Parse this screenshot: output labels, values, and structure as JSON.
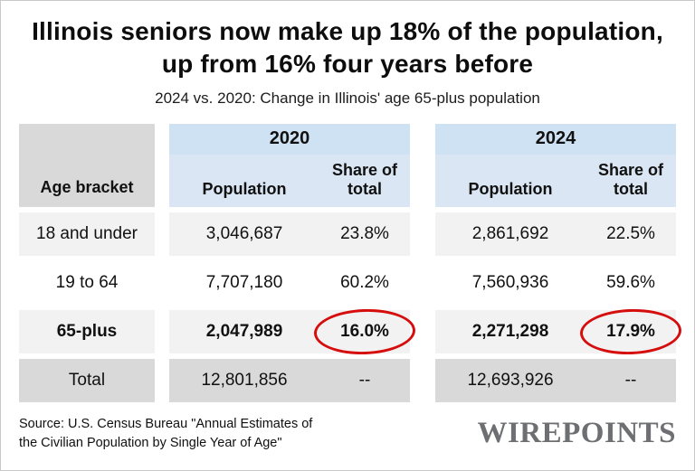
{
  "header": {
    "title": "Illinois seniors now make up 18% of the population, up from 16% four years before",
    "subtitle": "2024 vs. 2020: Change in Illinois' age 65-plus population"
  },
  "table": {
    "age_bracket_header": "Age bracket",
    "groups": [
      {
        "year": "2020",
        "population_label": "Population",
        "share_label": "Share of total"
      },
      {
        "year": "2024",
        "population_label": "Population",
        "share_label": "Share of total"
      }
    ],
    "rows": [
      {
        "label": "18 and under",
        "pop_2020": "3,046,687",
        "share_2020": "23.8%",
        "pop_2024": "2,861,692",
        "share_2024": "22.5%"
      },
      {
        "label": "19 to 64",
        "pop_2020": "7,707,180",
        "share_2020": "60.2%",
        "pop_2024": "7,560,936",
        "share_2024": "59.6%"
      },
      {
        "label": "65-plus",
        "pop_2020": "2,047,989",
        "share_2020": "16.0%",
        "pop_2024": "2,271,298",
        "share_2024": "17.9%"
      },
      {
        "label": "Total",
        "pop_2020": "12,801,856",
        "share_2020": "--",
        "pop_2024": "12,693,926",
        "share_2024": "--"
      }
    ]
  },
  "footer": {
    "source_line1": "Source: U.S. Census Bureau \"Annual Estimates of",
    "source_line2": "the Civilian Population by Single Year of Age\"",
    "logo": "WIREPOINTS"
  },
  "colors": {
    "header_blue": "#cfe2f3",
    "subheader_blue": "#dae6f3",
    "row_gray": "#f2f2f2",
    "total_gray": "#d9d9d9",
    "highlight_red": "#d60d0d",
    "logo_gray": "#6e6f72"
  },
  "chart_data": {
    "type": "table",
    "title": "Illinois seniors now make up 18% of the population, up from 16% four years before",
    "subtitle": "2024 vs. 2020: Change in Illinois' age 65-plus population",
    "columns": [
      "Age bracket",
      "2020 Population",
      "2020 Share of total",
      "2024 Population",
      "2024 Share of total"
    ],
    "rows": [
      [
        "18 and under",
        3046687,
        "23.8%",
        2861692,
        "22.5%"
      ],
      [
        "19 to 64",
        7707180,
        "60.2%",
        7560936,
        "59.6%"
      ],
      [
        "65-plus",
        2047989,
        "16.0%",
        2271298,
        "17.9%"
      ],
      [
        "Total",
        12801856,
        "--",
        12693926,
        "--"
      ]
    ],
    "annotations": [
      "16.0% (2020 share for 65-plus) circled in red",
      "17.9% (2024 share for 65-plus) circled in red"
    ],
    "source": "U.S. Census Bureau \"Annual Estimates of the Civilian Population by Single Year of Age\""
  }
}
